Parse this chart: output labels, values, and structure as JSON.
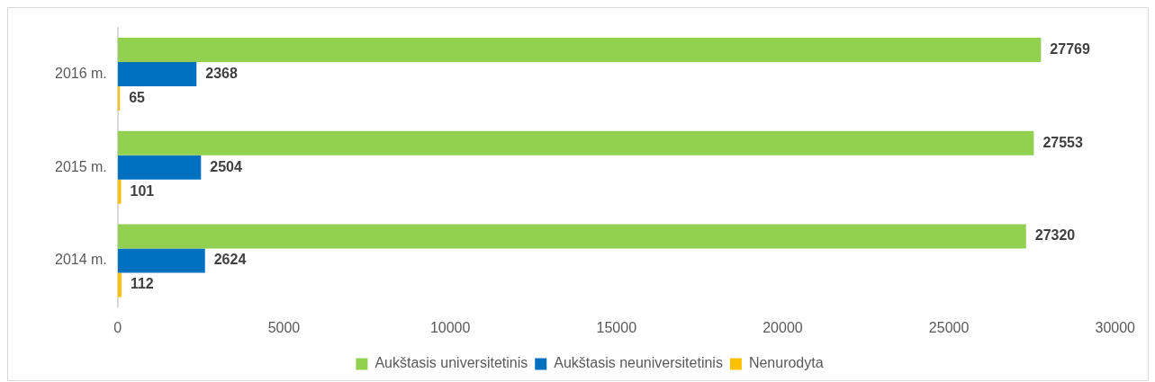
{
  "chart_data": {
    "type": "bar",
    "orientation": "horizontal",
    "categories": [
      "2016 m.",
      "2015 m.",
      "2014 m."
    ],
    "series": [
      {
        "name": "Aukštasis universitetinis",
        "color": "#92d050",
        "values": [
          27769,
          27553,
          27320
        ]
      },
      {
        "name": "Aukštasis neuniversitetinis",
        "color": "#0070c0",
        "values": [
          2368,
          2504,
          2624
        ]
      },
      {
        "name": "Nenurodyta",
        "color": "#ffc000",
        "values": [
          65,
          101,
          112
        ]
      }
    ],
    "xlim": [
      0,
      30000
    ],
    "xticks": [
      0,
      5000,
      10000,
      15000,
      20000,
      25000,
      30000
    ],
    "grid": false,
    "legend": "bottom",
    "data_labels": true
  }
}
